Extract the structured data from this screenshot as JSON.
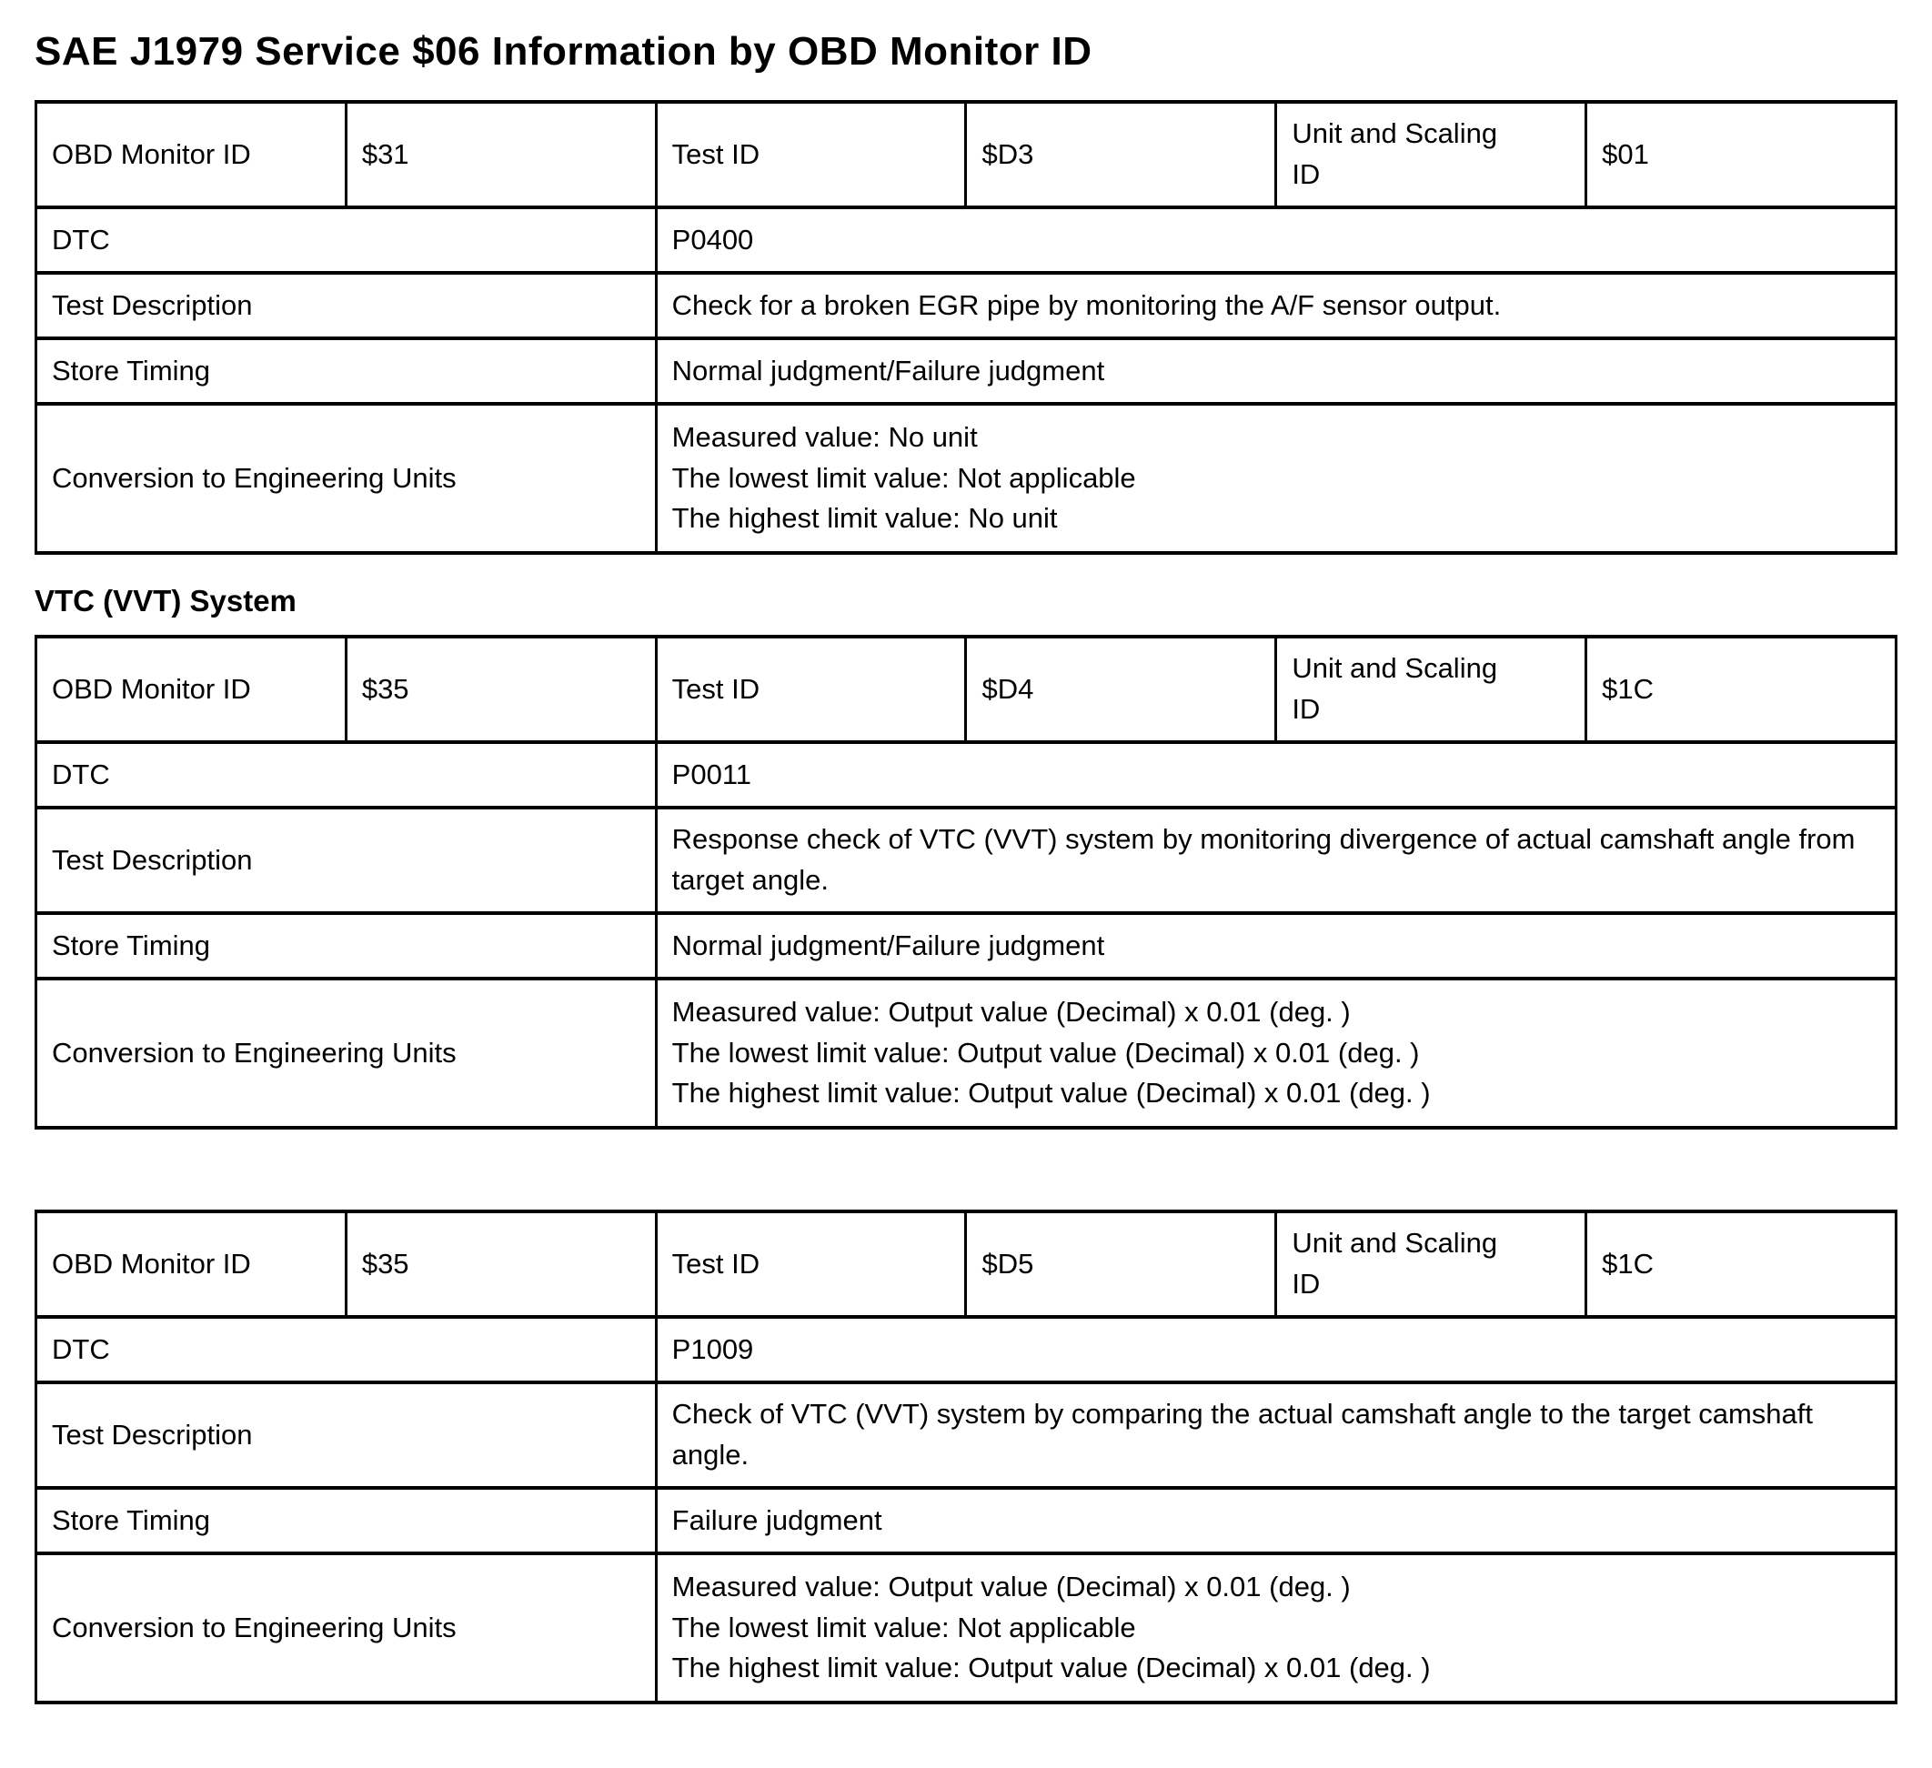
{
  "title": "SAE J1979 Service $06 Information by OBD Monitor ID",
  "section_heading": "VTC (VVT) System",
  "field_labels": {
    "obd_monitor_id": "OBD Monitor ID",
    "test_id": "Test ID",
    "unit_scaling_id": "Unit and Scaling ID",
    "dtc": "DTC",
    "test_description": "Test Description",
    "store_timing": "Store Timing",
    "conversion": "Conversion to Engineering Units"
  },
  "tables": [
    {
      "obd_monitor_id": "$31",
      "test_id": "$D3",
      "unit_scaling_id": "$01",
      "dtc": "P0400",
      "test_description": "Check for a broken EGR pipe by monitoring the A/F sensor output.",
      "store_timing": "Normal judgment/Failure judgment",
      "conversion": [
        "Measured value: No unit",
        "The lowest limit value: Not applicable",
        "The highest limit value: No unit"
      ]
    },
    {
      "obd_monitor_id": "$35",
      "test_id": "$D4",
      "unit_scaling_id": "$1C",
      "dtc": "P0011",
      "test_description": "Response check of VTC (VVT) system by monitoring divergence of actual camshaft angle from target angle.",
      "store_timing": "Normal judgment/Failure judgment",
      "conversion": [
        "Measured value: Output value (Decimal) x 0.01 (deg. )",
        "The lowest limit value: Output value (Decimal) x 0.01 (deg. )",
        "The highest limit value: Output value (Decimal) x 0.01 (deg. )"
      ]
    },
    {
      "obd_monitor_id": "$35",
      "test_id": "$D5",
      "unit_scaling_id": "$1C",
      "dtc": "P1009",
      "test_description": "Check of VTC (VVT) system by comparing the actual camshaft angle to the target camshaft angle.",
      "store_timing": "Failure judgment",
      "conversion": [
        "Measured value: Output value (Decimal) x 0.01 (deg. )",
        "The lowest limit value: Not applicable",
        "The highest limit value: Output value (Decimal) x 0.01 (deg. )"
      ]
    }
  ]
}
